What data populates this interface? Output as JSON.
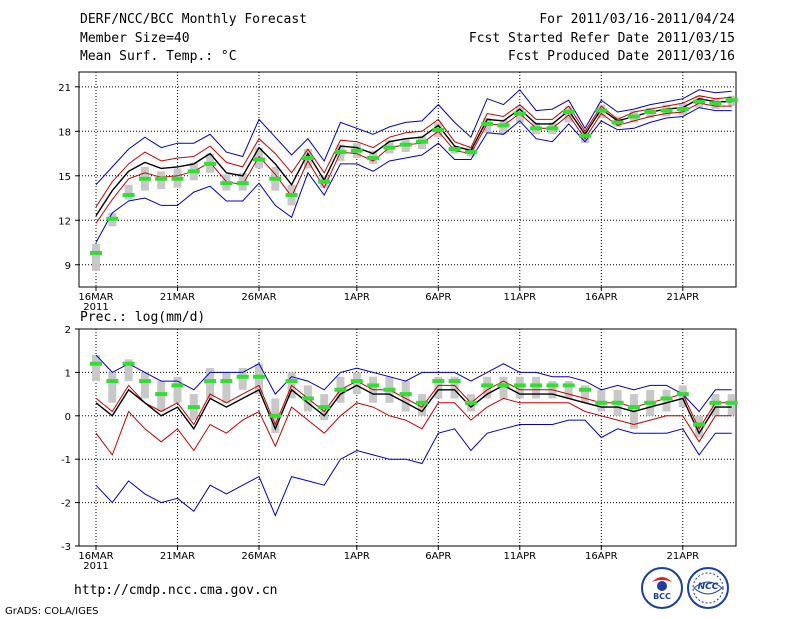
{
  "header": {
    "title": "DERF/NCC/BCC Monthly Forecast",
    "member_size": "Member Size=40",
    "variable": "Mean Surf. Temp.: °C",
    "period": "For 2011/03/16-2011/04/24",
    "started": "Fcst Started Refer Date 2011/03/15",
    "produced": "Fcst Produced Date 2011/03/16"
  },
  "footer": {
    "url": "http://cmdp.ncc.cma.gov.cn",
    "credit": "GrADS: COLA/IGES",
    "logo_left_text": "BCC",
    "logo_right_text": "NCC"
  },
  "colors": {
    "mean": "#000000",
    "spread": "#cc0000",
    "envelope": "#0000cc",
    "box": "#c8c8c8",
    "median": "#33dd33"
  },
  "chart_data": [
    {
      "type": "line",
      "title": "Mean Surf. Temp.: °C",
      "x": [
        1,
        2,
        3,
        4,
        5,
        6,
        7,
        8,
        9,
        10,
        11,
        12,
        13,
        14,
        15,
        16,
        17,
        18,
        19,
        20,
        21,
        22,
        23,
        24,
        25,
        26,
        27,
        28,
        29,
        30,
        31,
        32,
        33,
        34,
        35,
        36,
        37,
        38,
        39,
        40
      ],
      "x_tick_labels": [
        {
          "x": 1,
          "label": "16MAR"
        },
        {
          "x": 6,
          "label": "21MAR"
        },
        {
          "x": 11,
          "label": "26MAR"
        },
        {
          "x": 17,
          "label": "1APR"
        },
        {
          "x": 22,
          "label": "6APR"
        },
        {
          "x": 27,
          "label": "11APR"
        },
        {
          "x": 32,
          "label": "16APR"
        },
        {
          "x": 37,
          "label": "21APR"
        }
      ],
      "year_label": "2011",
      "ylim": [
        7.5,
        22
      ],
      "yticks": [
        9,
        12,
        15,
        18,
        21
      ],
      "series": [
        {
          "name": "max",
          "color": "#0000cc",
          "values": [
            14.4,
            15.6,
            16.8,
            17.6,
            16.9,
            17.2,
            17.2,
            17.8,
            16.6,
            16.3,
            18.8,
            17.6,
            16.4,
            17.5,
            16.0,
            18.6,
            18.2,
            17.8,
            18.3,
            18.6,
            18.7,
            19.8,
            18.6,
            17.6,
            20.2,
            19.8,
            20.8,
            19.4,
            19.5,
            20.1,
            18.2,
            20.1,
            19.3,
            19.5,
            19.8,
            20.0,
            20.2,
            20.8,
            20.6,
            20.7
          ]
        },
        {
          "name": "upper",
          "color": "#cc0000",
          "values": [
            12.9,
            14.6,
            15.8,
            16.6,
            16.0,
            16.2,
            16.3,
            17.0,
            15.9,
            15.6,
            17.5,
            16.5,
            15.2,
            16.8,
            15.2,
            17.4,
            17.3,
            16.9,
            17.6,
            17.9,
            18.0,
            18.8,
            17.3,
            16.9,
            19.2,
            19.0,
            19.8,
            18.8,
            18.8,
            19.7,
            18.0,
            19.7,
            18.8,
            19.3,
            19.5,
            19.7,
            19.9,
            20.4,
            20.2,
            20.3
          ]
        },
        {
          "name": "mean",
          "color": "#000000",
          "values": [
            12.3,
            14.0,
            15.3,
            15.9,
            15.5,
            15.6,
            15.8,
            16.5,
            15.2,
            15.0,
            16.9,
            15.8,
            14.4,
            16.5,
            14.7,
            17.0,
            16.9,
            16.5,
            17.3,
            17.5,
            17.6,
            18.4,
            17.0,
            16.7,
            18.8,
            18.7,
            19.5,
            18.5,
            18.5,
            19.4,
            17.8,
            19.5,
            18.7,
            19.0,
            19.3,
            19.5,
            19.6,
            20.2,
            20.0,
            20.0
          ]
        },
        {
          "name": "lower",
          "color": "#cc0000",
          "values": [
            11.8,
            13.4,
            14.8,
            15.2,
            14.9,
            15.0,
            15.3,
            15.9,
            14.6,
            14.4,
            16.3,
            15.1,
            13.6,
            16.0,
            14.2,
            16.6,
            16.5,
            16.0,
            16.9,
            17.1,
            17.2,
            18.0,
            16.7,
            16.5,
            18.5,
            18.4,
            19.2,
            18.2,
            18.2,
            19.1,
            17.5,
            19.2,
            18.4,
            18.7,
            19.0,
            19.2,
            19.3,
            19.9,
            19.7,
            19.7
          ]
        },
        {
          "name": "min",
          "color": "#0000cc",
          "values": [
            10.5,
            12.5,
            13.3,
            13.5,
            13.0,
            13.0,
            13.9,
            14.3,
            13.3,
            13.3,
            14.5,
            13.0,
            12.2,
            15.2,
            13.7,
            15.8,
            15.8,
            15.3,
            16.0,
            16.2,
            16.4,
            17.2,
            16.1,
            16.1,
            17.9,
            17.8,
            18.7,
            17.5,
            17.3,
            18.5,
            17.3,
            18.7,
            18.1,
            18.2,
            18.6,
            18.9,
            19.0,
            19.6,
            19.4,
            19.4
          ]
        }
      ],
      "box_median": [
        9.8,
        12.1,
        13.7,
        14.8,
        14.8,
        14.8,
        15.3,
        15.8,
        14.5,
        14.5,
        16.1,
        14.8,
        13.7,
        16.2,
        14.6,
        16.6,
        16.7,
        16.2,
        16.9,
        17.1,
        17.3,
        18.1,
        16.8,
        16.6,
        18.5,
        18.4,
        19.2,
        18.2,
        18.2,
        19.3,
        17.7,
        19.4,
        18.6,
        19.0,
        19.3,
        19.4,
        19.5,
        20.0,
        19.9,
        20.1
      ],
      "box_low": [
        8.6,
        11.6,
        13.4,
        14.0,
        14.1,
        14.2,
        14.7,
        15.2,
        14.0,
        14.0,
        15.5,
        14.0,
        13.0,
        15.5,
        14.2,
        16.0,
        16.2,
        15.8,
        16.5,
        16.6,
        16.8,
        17.6,
        16.5,
        16.3,
        17.9,
        17.8,
        18.6,
        17.8,
        17.8,
        18.6,
        17.2,
        18.9,
        18.3,
        18.6,
        18.9,
        19.0,
        19.1,
        19.6,
        19.5,
        19.7
      ],
      "box_high": [
        10.4,
        12.5,
        14.4,
        15.6,
        15.3,
        15.5,
        15.9,
        16.5,
        15.1,
        15.2,
        16.9,
        15.6,
        14.4,
        16.8,
        15.0,
        17.1,
        17.2,
        16.7,
        17.4,
        17.5,
        17.7,
        18.6,
        17.0,
        16.9,
        18.9,
        18.8,
        19.7,
        18.6,
        18.6,
        19.7,
        18.1,
        19.8,
        19.0,
        19.4,
        19.6,
        19.8,
        19.9,
        20.4,
        20.2,
        20.4
      ]
    },
    {
      "type": "line",
      "title": "Prec.: log(mm/d)",
      "x": [
        1,
        2,
        3,
        4,
        5,
        6,
        7,
        8,
        9,
        10,
        11,
        12,
        13,
        14,
        15,
        16,
        17,
        18,
        19,
        20,
        21,
        22,
        23,
        24,
        25,
        26,
        27,
        28,
        29,
        30,
        31,
        32,
        33,
        34,
        35,
        36,
        37,
        38,
        39,
        40
      ],
      "x_tick_labels": [
        {
          "x": 1,
          "label": "16MAR"
        },
        {
          "x": 6,
          "label": "21MAR"
        },
        {
          "x": 11,
          "label": "26MAR"
        },
        {
          "x": 17,
          "label": "1APR"
        },
        {
          "x": 22,
          "label": "6APR"
        },
        {
          "x": 27,
          "label": "11APR"
        },
        {
          "x": 32,
          "label": "16APR"
        },
        {
          "x": 37,
          "label": "21APR"
        }
      ],
      "year_label": "2011",
      "ylim": [
        -3,
        2
      ],
      "yticks": [
        -3,
        -2,
        -1,
        0,
        1,
        2
      ],
      "series": [
        {
          "name": "max",
          "color": "#0000cc",
          "values": [
            1.4,
            1.0,
            1.2,
            1.0,
            0.8,
            0.8,
            0.6,
            1.0,
            1.0,
            1.0,
            1.2,
            0.5,
            0.9,
            0.8,
            0.6,
            1.0,
            1.1,
            1.0,
            0.9,
            0.8,
            1.0,
            1.0,
            1.0,
            0.8,
            1.0,
            1.2,
            1.0,
            1.0,
            0.9,
            0.9,
            0.8,
            0.6,
            0.7,
            0.6,
            0.7,
            0.7,
            0.5,
            0.1,
            0.6,
            0.6
          ]
        },
        {
          "name": "upper",
          "color": "#cc0000",
          "values": [
            0.4,
            0.1,
            0.7,
            0.3,
            0.1,
            0.3,
            -0.2,
            0.5,
            0.3,
            0.5,
            0.7,
            -0.2,
            0.7,
            0.4,
            0.1,
            0.6,
            0.8,
            0.6,
            0.6,
            0.4,
            0.2,
            0.7,
            0.7,
            0.3,
            0.6,
            0.8,
            0.6,
            0.6,
            0.6,
            0.5,
            0.4,
            0.3,
            0.3,
            0.2,
            0.3,
            0.4,
            0.5,
            -0.3,
            0.3,
            0.3
          ]
        },
        {
          "name": "mean",
          "color": "#000000",
          "values": [
            0.3,
            0.0,
            0.6,
            0.3,
            0.0,
            0.2,
            -0.3,
            0.4,
            0.2,
            0.4,
            0.6,
            -0.3,
            0.6,
            0.3,
            0.0,
            0.5,
            0.7,
            0.5,
            0.5,
            0.3,
            0.1,
            0.6,
            0.6,
            0.2,
            0.5,
            0.7,
            0.5,
            0.5,
            0.5,
            0.4,
            0.3,
            0.2,
            0.2,
            0.1,
            0.2,
            0.3,
            0.4,
            -0.4,
            0.2,
            0.2
          ]
        },
        {
          "name": "lower",
          "color": "#cc0000",
          "values": [
            -0.4,
            -0.9,
            0.1,
            -0.3,
            -0.6,
            -0.3,
            -0.8,
            -0.2,
            -0.4,
            -0.1,
            0.1,
            -0.7,
            0.2,
            -0.1,
            -0.4,
            0.0,
            0.3,
            0.2,
            0.0,
            -0.1,
            -0.3,
            0.3,
            0.3,
            -0.1,
            0.2,
            0.4,
            0.3,
            0.3,
            0.3,
            0.3,
            0.1,
            0.0,
            -0.1,
            -0.2,
            -0.1,
            0.0,
            0.0,
            -0.6,
            0.0,
            0.0
          ]
        },
        {
          "name": "min",
          "color": "#0000cc",
          "values": [
            -1.6,
            -2.0,
            -1.5,
            -1.8,
            -2.0,
            -1.9,
            -2.2,
            -1.6,
            -1.8,
            -1.6,
            -1.4,
            -2.3,
            -1.4,
            -1.5,
            -1.6,
            -1.0,
            -0.8,
            -0.9,
            -1.0,
            -1.0,
            -1.1,
            -0.4,
            -0.3,
            -0.8,
            -0.4,
            -0.3,
            -0.2,
            -0.2,
            -0.2,
            -0.1,
            -0.1,
            -0.5,
            -0.3,
            -0.4,
            -0.4,
            -0.4,
            -0.3,
            -0.9,
            -0.4,
            -0.4
          ]
        }
      ],
      "box_median": [
        1.2,
        0.8,
        1.2,
        0.8,
        0.5,
        0.7,
        0.2,
        0.8,
        0.8,
        0.9,
        0.9,
        0.0,
        0.8,
        0.4,
        0.2,
        0.6,
        0.8,
        0.7,
        0.6,
        0.5,
        0.3,
        0.8,
        0.8,
        0.3,
        0.7,
        0.7,
        0.7,
        0.7,
        0.7,
        0.7,
        0.6,
        0.3,
        0.3,
        0.2,
        0.3,
        0.4,
        0.5,
        -0.2,
        0.3,
        0.3
      ],
      "box_low": [
        0.8,
        0.3,
        0.8,
        0.4,
        0.1,
        0.3,
        -0.1,
        0.4,
        0.3,
        0.6,
        0.5,
        -0.4,
        0.4,
        0.1,
        -0.1,
        0.3,
        0.5,
        0.3,
        0.3,
        0.1,
        0.0,
        0.4,
        0.4,
        0.1,
        0.4,
        0.4,
        0.4,
        0.4,
        0.4,
        0.4,
        0.3,
        0.1,
        0.0,
        -0.3,
        0.0,
        0.1,
        0.2,
        -0.5,
        0.0,
        0.0
      ],
      "box_high": [
        1.4,
        1.0,
        1.3,
        1.0,
        0.8,
        0.9,
        0.5,
        1.1,
        1.0,
        1.1,
        1.2,
        0.4,
        1.0,
        0.7,
        0.5,
        0.9,
        1.0,
        0.9,
        0.9,
        0.8,
        0.5,
        0.9,
        0.9,
        0.5,
        0.9,
        0.9,
        0.9,
        0.9,
        0.8,
        0.8,
        0.7,
        0.6,
        0.6,
        0.5,
        0.6,
        0.6,
        0.7,
        0.0,
        0.5,
        0.5
      ]
    }
  ]
}
